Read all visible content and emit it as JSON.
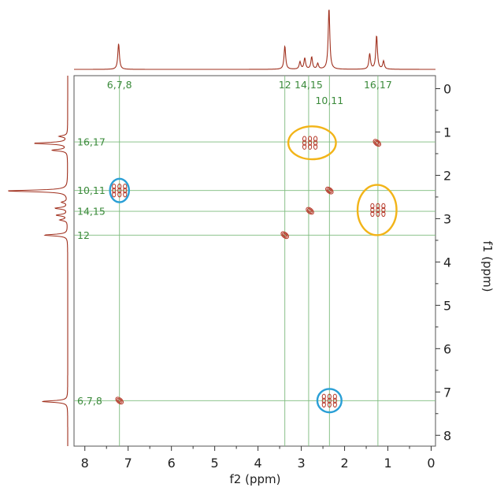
{
  "chart_data": {
    "type": "scatter",
    "title": "",
    "xlabel": "f2 (ppm)",
    "ylabel": "f1 (ppm)",
    "xlim": [
      8.25,
      -0.1
    ],
    "ylim": [
      -0.3,
      8.25
    ],
    "x_ticks": [
      8,
      7,
      6,
      5,
      4,
      3,
      2,
      1,
      0
    ],
    "y_ticks": [
      0,
      1,
      2,
      3,
      4,
      5,
      6,
      7,
      8
    ],
    "grid": false,
    "colors": {
      "spectrum": "#a0301e",
      "contour": "#b63a2a",
      "assignment_lines": "#7dbb7d",
      "assignment_text": "#3a8a3a",
      "highlight_yellow": "#f2b418",
      "highlight_blue": "#2a9fd6"
    },
    "assignments": [
      {
        "label": "6,7,8",
        "ppm": 7.2
      },
      {
        "label": "12",
        "ppm": 3.38
      },
      {
        "label": "14,15",
        "ppm": 2.83
      },
      {
        "label": "10,11",
        "ppm": 2.35
      },
      {
        "label": "16,17",
        "ppm": 1.23
      }
    ],
    "peaks_1d": [
      {
        "ppm": 7.22,
        "height": 0.42
      },
      {
        "ppm": 3.38,
        "height": 0.38
      },
      {
        "ppm": 3.03,
        "height": 0.12
      },
      {
        "ppm": 2.92,
        "height": 0.18
      },
      {
        "ppm": 2.76,
        "height": 0.2
      },
      {
        "ppm": 2.62,
        "height": 0.09
      },
      {
        "ppm": 2.36,
        "height": 1.0
      },
      {
        "ppm": 1.42,
        "height": 0.25
      },
      {
        "ppm": 1.26,
        "height": 0.55
      },
      {
        "ppm": 1.1,
        "height": 0.13
      }
    ],
    "cross_peaks": [
      {
        "x": 7.2,
        "y": 7.2,
        "kind": "diagonal"
      },
      {
        "x": 3.38,
        "y": 3.38,
        "kind": "diagonal"
      },
      {
        "x": 2.8,
        "y": 2.82,
        "kind": "diagonal"
      },
      {
        "x": 2.35,
        "y": 2.35,
        "kind": "diagonal"
      },
      {
        "x": 1.25,
        "y": 1.25,
        "kind": "diagonal"
      },
      {
        "x": 7.2,
        "y": 2.35,
        "kind": "cross"
      },
      {
        "x": 2.35,
        "y": 7.2,
        "kind": "cross"
      },
      {
        "x": 2.8,
        "y": 1.25,
        "kind": "cross"
      },
      {
        "x": 1.23,
        "y": 2.8,
        "kind": "cross"
      }
    ],
    "highlights": [
      {
        "x": 2.75,
        "y": 1.25,
        "rx": 0.55,
        "ry": 0.38,
        "color": "yellow"
      },
      {
        "x": 1.25,
        "y": 2.8,
        "rx": 0.45,
        "ry": 0.58,
        "color": "yellow"
      },
      {
        "x": 7.2,
        "y": 2.35,
        "rx": 0.22,
        "ry": 0.27,
        "color": "blue"
      },
      {
        "x": 2.35,
        "y": 7.2,
        "rx": 0.28,
        "ry": 0.27,
        "color": "blue"
      }
    ]
  }
}
